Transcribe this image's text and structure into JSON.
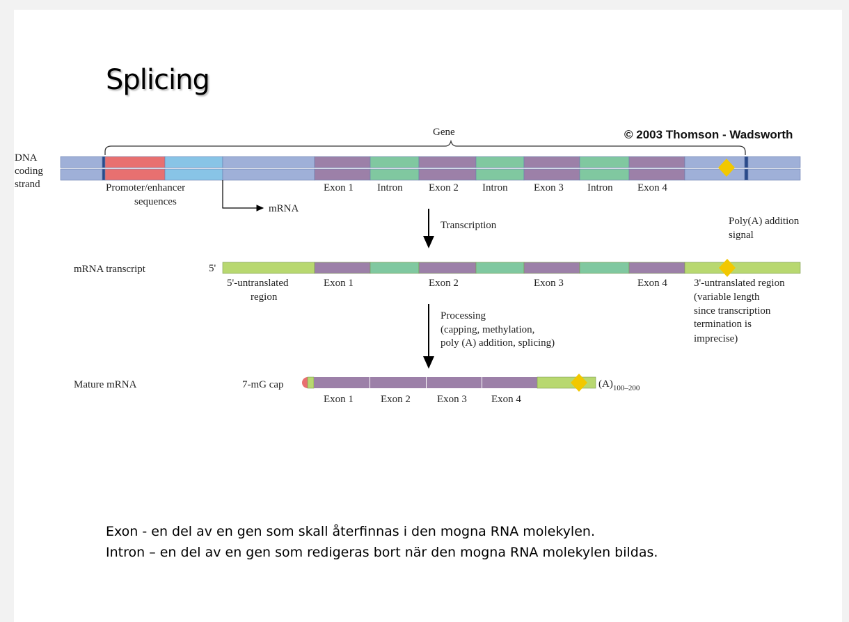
{
  "title": "Splicing",
  "copyright": "© 2003 Thomson - Wadsworth",
  "colors": {
    "dna_blue": "#9fb0d8",
    "marker": "#2a4a8a",
    "promoter": "#e87070",
    "enhancer": "#88c4e6",
    "exon": "#9c80a8",
    "intron": "#80c8a0",
    "utr": "#b8d870",
    "polyA_signal": "#f2c800"
  },
  "dna": {
    "label_lines": [
      "DNA",
      "coding",
      "strand"
    ],
    "gene_label": "Gene",
    "promoter_lines": [
      "Promoter/enhancer",
      "sequences"
    ],
    "mrna_arrow_label": "mRNA",
    "segment_labels": [
      "Exon 1",
      "Intron",
      "Exon 2",
      "Intron",
      "Exon 3",
      "Intron",
      "Exon 4"
    ],
    "polyA_lines": [
      "Poly(A) addition",
      "signal"
    ]
  },
  "step1": "Transcription",
  "transcript": {
    "label": "mRNA transcript",
    "five_prime": "5'",
    "utr5_lines": [
      "5'-untranslated",
      "region"
    ],
    "exon_labels": [
      "Exon 1",
      "Exon 2",
      "Exon 3",
      "Exon 4"
    ],
    "utr3_lines": [
      "3'-untranslated region",
      "(variable length",
      "since transcription",
      "termination is",
      "imprecise)"
    ]
  },
  "step2_lines": [
    "Processing",
    "(capping, methylation,",
    "poly (A) addition, splicing)"
  ],
  "mature": {
    "label": "Mature mRNA",
    "cap": "7-mG cap",
    "tail": "(A)",
    "tail_sub": "100–200",
    "exon_labels": [
      "Exon 1",
      "Exon 2",
      "Exon 3",
      "Exon 4"
    ]
  },
  "definitions": [
    "Exon -  en del av en gen som skall återfinnas i den mogna RNA molekylen.",
    "Intron – en del av en gen som redigeras bort när den mogna RNA molekylen bildas."
  ]
}
